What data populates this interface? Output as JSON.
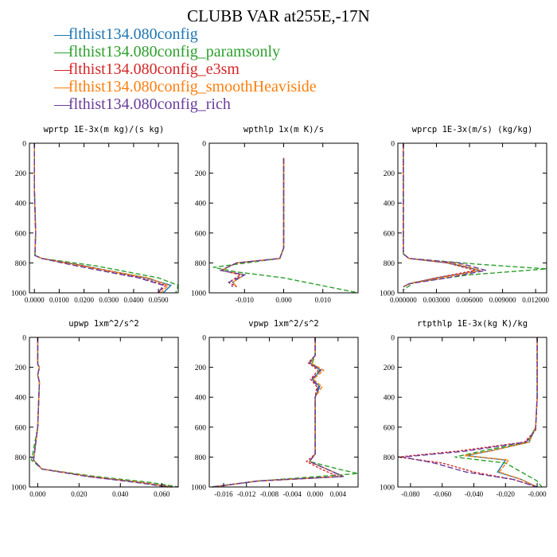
{
  "title": "CLUBB VAR at255E,-17N",
  "legend": [
    {
      "label": "flthist134.080config",
      "color": "#1f77b4"
    },
    {
      "label": "flthist134.080config_paramsonly",
      "color": "#2ca02c"
    },
    {
      "label": "flthist134.080config_e3sm",
      "color": "#d62728"
    },
    {
      "label": "flthist134.080config_smoothHeaviside",
      "color": "#ff7f0e"
    },
    {
      "label": "flthist134.080config_rich",
      "color": "#6a3d9a"
    }
  ],
  "chart_data": [
    {
      "type": "line",
      "title": "wprtp  1E-3x(m kg)/(s kg)",
      "xlim": [
        -0.002,
        0.058
      ],
      "ylim": [
        1000,
        0
      ],
      "xticks": [
        0,
        0.01,
        0.02,
        0.03,
        0.04,
        0.05
      ],
      "xticklabels": [
        "0.0000",
        "0.0100",
        "0.0200",
        "0.0300",
        "0.0400",
        "0.0500"
      ],
      "yticks": [
        0,
        200,
        400,
        600,
        800,
        1000
      ],
      "series": [
        {
          "color": "#1f77b4",
          "x": [
            0,
            0,
            0.0005,
            0.0002,
            0.003,
            0.02,
            0.045,
            0.055,
            0.052
          ],
          "y": [
            0,
            300,
            600,
            750,
            770,
            820,
            900,
            950,
            1000
          ]
        },
        {
          "color": "#2ca02c",
          "x": [
            0,
            0,
            0.0005,
            0.0002,
            0.003,
            0.025,
            0.05,
            0.058,
            0.057
          ],
          "y": [
            0,
            300,
            600,
            750,
            770,
            820,
            900,
            950,
            1000
          ]
        },
        {
          "color": "#d62728",
          "x": [
            0,
            0,
            0.0005,
            0.0002,
            0.003,
            0.02,
            0.043,
            0.053,
            0.05
          ],
          "y": [
            0,
            300,
            600,
            750,
            770,
            820,
            900,
            950,
            1000
          ]
        },
        {
          "color": "#ff7f0e",
          "x": [
            0,
            0,
            0.0005,
            0.0002,
            0.003,
            0.019,
            0.046,
            0.054,
            0.051
          ],
          "y": [
            0,
            300,
            600,
            750,
            770,
            820,
            900,
            950,
            1000
          ]
        },
        {
          "color": "#6a3d9a",
          "x": [
            0,
            0,
            0.0005,
            0.0002,
            0.003,
            0.017,
            0.042,
            0.052,
            0.05
          ],
          "y": [
            0,
            300,
            600,
            750,
            770,
            820,
            900,
            950,
            1000
          ]
        }
      ]
    },
    {
      "type": "line",
      "title": "wpthlp  1x(m K)/s",
      "xlim": [
        -0.019,
        0.019
      ],
      "ylim": [
        1000,
        0
      ],
      "xticks": [
        -0.01,
        0,
        0.01
      ],
      "xticklabels": [
        "-0.010",
        "0.000",
        "0.010"
      ],
      "yticks": [
        0,
        200,
        400,
        600,
        800,
        1000
      ],
      "series": [
        {
          "color": "#1f77b4",
          "x": [
            0,
            0,
            0,
            -0.001,
            -0.012,
            -0.016,
            -0.01,
            -0.013,
            -0.012
          ],
          "y": [
            100,
            300,
            700,
            770,
            800,
            850,
            880,
            930,
            960
          ]
        },
        {
          "color": "#2ca02c",
          "x": [
            0,
            0,
            0,
            -0.001,
            -0.018,
            -0.012,
            0,
            0.019
          ],
          "y": [
            100,
            300,
            700,
            770,
            830,
            860,
            900,
            1000
          ]
        },
        {
          "color": "#d62728",
          "x": [
            0,
            0,
            0,
            -0.001,
            -0.012,
            -0.016,
            -0.011,
            -0.014,
            -0.012
          ],
          "y": [
            100,
            300,
            700,
            770,
            800,
            850,
            880,
            930,
            960
          ]
        },
        {
          "color": "#ff7f0e",
          "x": [
            0,
            0,
            0,
            -0.001,
            -0.012,
            -0.016,
            -0.01,
            -0.013,
            -0.012
          ],
          "y": [
            100,
            300,
            700,
            770,
            800,
            850,
            880,
            930,
            960
          ]
        },
        {
          "color": "#6a3d9a",
          "x": [
            0,
            0,
            0,
            -0.001,
            -0.012,
            -0.016,
            -0.01,
            -0.014,
            -0.013
          ],
          "y": [
            100,
            300,
            700,
            770,
            800,
            850,
            880,
            930,
            960
          ]
        }
      ]
    },
    {
      "type": "line",
      "title": "wprcp  1E-3x(m/s) (kg/kg)",
      "xlim": [
        -0.0005,
        0.013
      ],
      "ylim": [
        1000,
        0
      ],
      "xticks": [
        0,
        0.003,
        0.006,
        0.009,
        0.012
      ],
      "xticklabels": [
        "0.000000",
        "0.003000",
        "0.006000",
        "0.009000",
        "0.012000"
      ],
      "yticks": [
        0,
        200,
        400,
        600,
        800,
        1000
      ],
      "series": [
        {
          "color": "#1f77b4",
          "x": [
            0,
            0,
            0,
            0.0005,
            0.004,
            0.007,
            0.003,
            0.0005,
            0
          ],
          "y": [
            0,
            500,
            740,
            770,
            800,
            850,
            900,
            940,
            960
          ]
        },
        {
          "color": "#2ca02c",
          "x": [
            0,
            0,
            0,
            0.0005,
            0.007,
            0.013,
            0.006,
            0.001,
            0
          ],
          "y": [
            0,
            500,
            740,
            770,
            810,
            840,
            880,
            930,
            980
          ]
        },
        {
          "color": "#d62728",
          "x": [
            0,
            0,
            0,
            0.0005,
            0.004,
            0.0065,
            0.003,
            0.0005,
            0
          ],
          "y": [
            0,
            500,
            740,
            770,
            800,
            850,
            900,
            940,
            960
          ]
        },
        {
          "color": "#ff7f0e",
          "x": [
            0,
            0,
            0,
            0.0005,
            0.0045,
            0.007,
            0.0035,
            0.0005,
            0
          ],
          "y": [
            0,
            500,
            740,
            770,
            800,
            850,
            900,
            940,
            960
          ]
        },
        {
          "color": "#6a3d9a",
          "x": [
            0,
            0,
            0,
            0.0005,
            0.005,
            0.0075,
            0.004,
            0.0005,
            0
          ],
          "y": [
            0,
            500,
            740,
            770,
            800,
            850,
            900,
            940,
            960
          ]
        }
      ]
    },
    {
      "type": "line",
      "title": "upwp  1xm^2/s^2",
      "xlim": [
        -0.004,
        0.068
      ],
      "ylim": [
        1000,
        0
      ],
      "xticks": [
        0,
        0.02,
        0.04,
        0.06
      ],
      "xticklabels": [
        "0.000",
        "0.020",
        "0.040",
        "0.060"
      ],
      "yticks": [
        0,
        200,
        400,
        600,
        800,
        1000
      ],
      "series": [
        {
          "color": "#1f77b4",
          "x": [
            0,
            0,
            0.0008,
            0,
            0.0008,
            0,
            -0.002,
            0.002,
            0.025,
            0.05,
            0.065
          ],
          "y": [
            0,
            180,
            200,
            250,
            300,
            600,
            820,
            880,
            930,
            970,
            1000
          ]
        },
        {
          "color": "#2ca02c",
          "x": [
            0,
            0,
            0.0008,
            0,
            0.0008,
            0,
            -0.003,
            0.002,
            0.028,
            0.055,
            0.068
          ],
          "y": [
            0,
            180,
            200,
            250,
            300,
            600,
            820,
            880,
            930,
            970,
            1000
          ]
        },
        {
          "color": "#d62728",
          "x": [
            0,
            0,
            0.0008,
            0,
            0.0008,
            0,
            -0.002,
            0.002,
            0.025,
            0.05,
            0.065
          ],
          "y": [
            0,
            180,
            200,
            250,
            300,
            600,
            820,
            880,
            930,
            970,
            1000
          ]
        },
        {
          "color": "#ff7f0e",
          "x": [
            0,
            0,
            0.0008,
            0,
            0.0008,
            0,
            -0.002,
            0.002,
            0.025,
            0.05,
            0.064
          ],
          "y": [
            0,
            180,
            200,
            250,
            300,
            600,
            820,
            880,
            930,
            970,
            1000
          ]
        },
        {
          "color": "#6a3d9a",
          "x": [
            0,
            0,
            0.0008,
            0,
            0.0008,
            0,
            -0.002,
            0.002,
            0.024,
            0.048,
            0.063
          ],
          "y": [
            0,
            180,
            200,
            250,
            300,
            600,
            820,
            880,
            930,
            970,
            1000
          ]
        }
      ]
    },
    {
      "type": "line",
      "title": "vpwp  1xm^2/s^2",
      "xlim": [
        -0.0185,
        0.0075
      ],
      "ylim": [
        1000,
        0
      ],
      "xticks": [
        -0.016,
        -0.012,
        -0.008,
        -0.004,
        0,
        0.004
      ],
      "xticklabels": [
        "-0.016",
        "-0.012",
        "-0.008",
        "-0.004",
        "0.000",
        "0.004"
      ],
      "yticks": [
        0,
        200,
        400,
        600,
        800,
        1000
      ],
      "series": [
        {
          "color": "#1f77b4",
          "x": [
            0,
            0,
            -0.001,
            0.001,
            -0.0005,
            0.0008,
            0,
            0,
            -0.001,
            0.002,
            0.005,
            -0.01,
            -0.018
          ],
          "y": [
            0,
            120,
            170,
            220,
            280,
            330,
            400,
            780,
            830,
            880,
            930,
            960,
            1000
          ]
        },
        {
          "color": "#2ca02c",
          "x": [
            0,
            0,
            -0.0005,
            0.0008,
            -0.0005,
            0.0005,
            0,
            0,
            -0.001,
            0.004,
            0.0075,
            -0.01,
            -0.018
          ],
          "y": [
            0,
            120,
            170,
            220,
            280,
            330,
            400,
            780,
            830,
            880,
            910,
            960,
            1000
          ]
        },
        {
          "color": "#d62728",
          "x": [
            0,
            0,
            -0.0012,
            0.0005,
            -0.0008,
            0.0003,
            0,
            0,
            -0.0015,
            0.001,
            0.004,
            -0.01,
            -0.018
          ],
          "y": [
            0,
            120,
            170,
            220,
            280,
            330,
            400,
            780,
            830,
            880,
            930,
            960,
            1000
          ]
        },
        {
          "color": "#ff7f0e",
          "x": [
            0,
            0,
            -0.0008,
            0.0015,
            -0.0003,
            0.0012,
            0,
            0,
            -0.001,
            0.002,
            0.005,
            -0.01,
            -0.018
          ],
          "y": [
            0,
            120,
            170,
            220,
            280,
            330,
            400,
            780,
            830,
            880,
            930,
            960,
            1000
          ]
        },
        {
          "color": "#6a3d9a",
          "x": [
            0,
            0,
            -0.001,
            0.001,
            -0.0006,
            0.0006,
            0,
            0,
            -0.001,
            0.002,
            0.0048,
            -0.01,
            -0.018
          ],
          "y": [
            0,
            120,
            170,
            220,
            280,
            330,
            400,
            780,
            830,
            880,
            930,
            960,
            1000
          ]
        }
      ]
    },
    {
      "type": "line",
      "title": "rtpthlp  1E-3x(kg K)/kg",
      "xlim": [
        -0.088,
        0.006
      ],
      "ylim": [
        1000,
        0
      ],
      "xticks": [
        -0.08,
        -0.06,
        -0.04,
        -0.02,
        0
      ],
      "xticklabels": [
        "-0.080",
        "-0.060",
        "-0.040",
        "-0.020",
        "-0.000"
      ],
      "yticks": [
        0,
        200,
        400,
        600,
        800,
        1000
      ],
      "series": [
        {
          "color": "#1f77b4",
          "x": [
            0,
            0,
            -0.001,
            -0.005,
            -0.03,
            -0.045,
            -0.02,
            -0.025,
            -0.01,
            0
          ],
          "y": [
            0,
            400,
            600,
            700,
            760,
            790,
            820,
            900,
            950,
            1000
          ]
        },
        {
          "color": "#2ca02c",
          "x": [
            0,
            0,
            -0.001,
            -0.006,
            -0.035,
            -0.052,
            -0.02,
            -0.01,
            0,
            0.003
          ],
          "y": [
            0,
            400,
            600,
            700,
            760,
            800,
            840,
            900,
            960,
            1000
          ]
        },
        {
          "color": "#d62728",
          "x": [
            0,
            0,
            -0.001,
            -0.008,
            -0.05,
            -0.088,
            -0.06,
            -0.04,
            -0.015,
            0
          ],
          "y": [
            0,
            400,
            620,
            700,
            760,
            800,
            840,
            900,
            950,
            1000
          ]
        },
        {
          "color": "#ff7f0e",
          "x": [
            0,
            0,
            -0.001,
            -0.005,
            -0.03,
            -0.046,
            -0.018,
            -0.024,
            -0.01,
            0
          ],
          "y": [
            0,
            400,
            600,
            700,
            760,
            790,
            820,
            900,
            950,
            1000
          ]
        },
        {
          "color": "#6a3d9a",
          "x": [
            0,
            0,
            -0.001,
            -0.007,
            -0.045,
            -0.085,
            -0.065,
            -0.045,
            -0.015,
            0
          ],
          "y": [
            0,
            400,
            620,
            700,
            760,
            800,
            840,
            900,
            950,
            1000
          ]
        }
      ]
    }
  ]
}
